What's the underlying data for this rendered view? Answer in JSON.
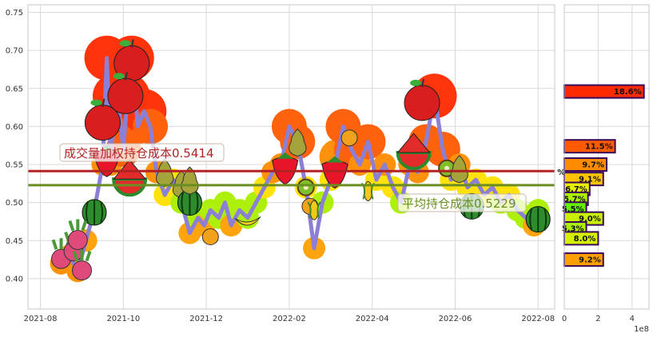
{
  "chart_data": [
    {
      "type": "line",
      "x_ticks": [
        "2021-08",
        "2021-10",
        "2021-12",
        "2022-02",
        "2022-04",
        "2022-06",
        "2022-08"
      ],
      "y_ticks": [
        "0.40",
        "0.45",
        "0.50",
        "0.55",
        "0.60",
        "0.65",
        "0.70",
        "0.75"
      ],
      "ylim": [
        0.36,
        0.76
      ],
      "xlim_month_index": [
        -0.3,
        12.4
      ],
      "grid": true,
      "series": [
        {
          "color": "#8b7fd6",
          "x": [
            0.5,
            0.7,
            0.9,
            1.1,
            1.3,
            1.5,
            1.6,
            1.7,
            1.8,
            1.9,
            2.0,
            2.1,
            2.2,
            2.35,
            2.5,
            2.65,
            2.8,
            3.0,
            3.2,
            3.4,
            3.6,
            3.8,
            3.95,
            4.1,
            4.3,
            4.45,
            4.6,
            4.8,
            5.0,
            5.2,
            5.4,
            5.6,
            5.8,
            6.0,
            6.2,
            6.4,
            6.6,
            6.8,
            7.0,
            7.15,
            7.3,
            7.5,
            7.7,
            7.9,
            8.1,
            8.3,
            8.5,
            8.7,
            8.9,
            9.1,
            9.3,
            9.5,
            9.7,
            9.9,
            10.1,
            10.3,
            10.5,
            10.7,
            10.9,
            11.1,
            11.3,
            11.5,
            11.7,
            11.9,
            12.0
          ],
          "y": [
            0.42,
            0.43,
            0.41,
            0.45,
            0.49,
            0.55,
            0.69,
            0.55,
            0.64,
            0.62,
            0.57,
            0.64,
            0.69,
            0.6,
            0.62,
            0.6,
            0.54,
            0.51,
            0.53,
            0.5,
            0.46,
            0.48,
            0.47,
            0.49,
            0.48,
            0.5,
            0.47,
            0.49,
            0.48,
            0.5,
            0.52,
            0.54,
            0.55,
            0.6,
            0.58,
            0.52,
            0.44,
            0.5,
            0.53,
            0.56,
            0.6,
            0.57,
            0.55,
            0.58,
            0.53,
            0.55,
            0.52,
            0.5,
            0.55,
            0.54,
            0.58,
            0.64,
            0.57,
            0.53,
            0.55,
            0.52,
            0.53,
            0.51,
            0.52,
            0.5,
            0.51,
            0.49,
            0.48,
            0.47,
            0.49
          ]
        }
      ],
      "hlines": [
        {
          "value": 0.5414,
          "color": "#b22222",
          "label": "成交量加权持仓成本0.5414",
          "label_color": "#b22222"
        },
        {
          "value": 0.5229,
          "color": "#6b8e23",
          "label": "平均持仓成本0.5229",
          "label_color": "#6b8e23"
        }
      ]
    },
    {
      "type": "bar",
      "orientation": "horizontal",
      "x_ticks": [
        "0",
        "2",
        "4"
      ],
      "x_scale_note": "1e8",
      "xlim": [
        0,
        5.0
      ],
      "bars": [
        {
          "price": 0.646,
          "value": 4.7,
          "label": "18.6%",
          "color": "#ff2a00"
        },
        {
          "price": 0.574,
          "value": 3.0,
          "label": "11.5%",
          "color": "#ff5a00"
        },
        {
          "price": 0.55,
          "value": 2.5,
          "label": "9.7%",
          "color": "#ff8c00"
        },
        {
          "price": 0.531,
          "value": 2.3,
          "label": "9.1%",
          "color": "#ffc400"
        },
        {
          "price": 0.518,
          "value": 1.5,
          "label": "6.7%",
          "color": "#e8f000"
        },
        {
          "price": 0.505,
          "value": 1.4,
          "label": "5.7%",
          "color": "#aaf000"
        },
        {
          "price": 0.492,
          "value": 1.3,
          "label": "5.5%",
          "color": "#66f000"
        },
        {
          "price": 0.479,
          "value": 2.3,
          "label": "9.0%",
          "color": "#c8f000"
        },
        {
          "price": 0.466,
          "value": 1.3,
          "label": "5.3%",
          "color": "#aaf000"
        },
        {
          "price": 0.453,
          "value": 2.0,
          "label": "8.0%",
          "color": "#d4f000"
        },
        {
          "price": 0.425,
          "value": 2.3,
          "label": "9.2%",
          "color": "#ffa000"
        },
        {
          "price": 0.54,
          "value": 0.2,
          "label": "%",
          "color": "#ffffff"
        }
      ]
    }
  ]
}
